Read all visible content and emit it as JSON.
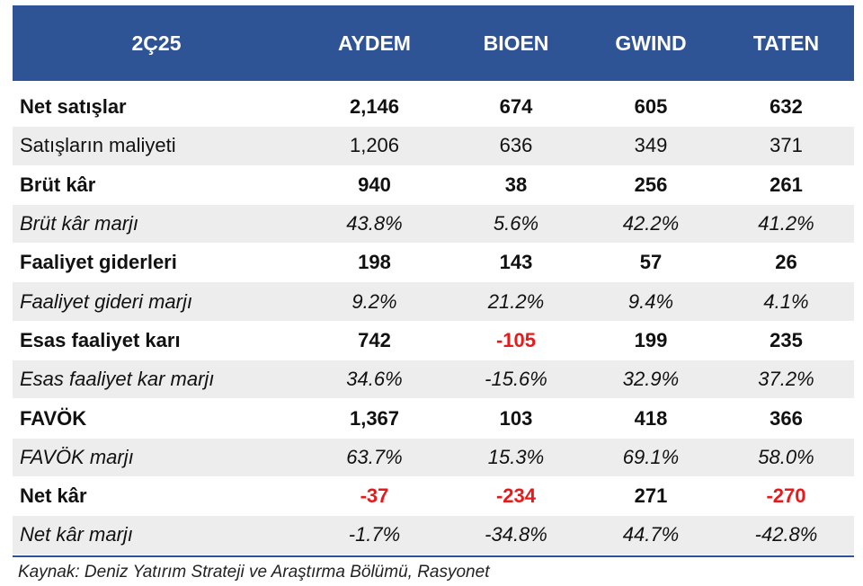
{
  "table": {
    "header": [
      "2Ç25",
      "AYDEM",
      "BIOEN",
      "GWIND",
      "TATEN"
    ],
    "rows": [
      {
        "label": "Net satışlar",
        "values": [
          "2,146",
          "674",
          "605",
          "632"
        ],
        "style": "bold"
      },
      {
        "label": "Satışların maliyeti",
        "values": [
          "1,206",
          "636",
          "349",
          "371"
        ],
        "style": "normal"
      },
      {
        "label": "Brüt kâr",
        "values": [
          "940",
          "38",
          "256",
          "261"
        ],
        "style": "bold"
      },
      {
        "label": "Brüt kâr marjı",
        "values": [
          "43.8%",
          "5.6%",
          "42.2%",
          "41.2%"
        ],
        "style": "italic"
      },
      {
        "label": "Faaliyet giderleri",
        "values": [
          "198",
          "143",
          "57",
          "26"
        ],
        "style": "bold"
      },
      {
        "label": "Faaliyet gideri marjı",
        "values": [
          "9.2%",
          "21.2%",
          "9.4%",
          "4.1%"
        ],
        "style": "italic"
      },
      {
        "label": "Esas faaliyet karı",
        "values": [
          "742",
          "-105",
          "199",
          "235"
        ],
        "style": "bold"
      },
      {
        "label": "Esas faaliyet kar marjı",
        "values": [
          "34.6%",
          "-15.6%",
          "32.9%",
          "37.2%"
        ],
        "style": "italic"
      },
      {
        "label": "FAVÖK",
        "values": [
          "1,367",
          "103",
          "418",
          "366"
        ],
        "style": "bold"
      },
      {
        "label": "FAVÖK marjı",
        "values": [
          "63.7%",
          "15.3%",
          "69.1%",
          "58.0%"
        ],
        "style": "italic"
      },
      {
        "label": "Net kâr",
        "values": [
          "-37",
          "-234",
          "271",
          "-270"
        ],
        "style": "bold"
      },
      {
        "label": "Net kâr marjı",
        "values": [
          "-1.7%",
          "-34.8%",
          "44.7%",
          "-42.8%"
        ],
        "style": "italic"
      }
    ]
  },
  "colors": {
    "header_bg": "#2f5496",
    "negative_bold": "#e8191b",
    "alt_row_bg": "#ededed"
  },
  "source": "Kaynak: Deniz Yatırım Strateji ve Araştırma Bölümü, Rasyonet"
}
